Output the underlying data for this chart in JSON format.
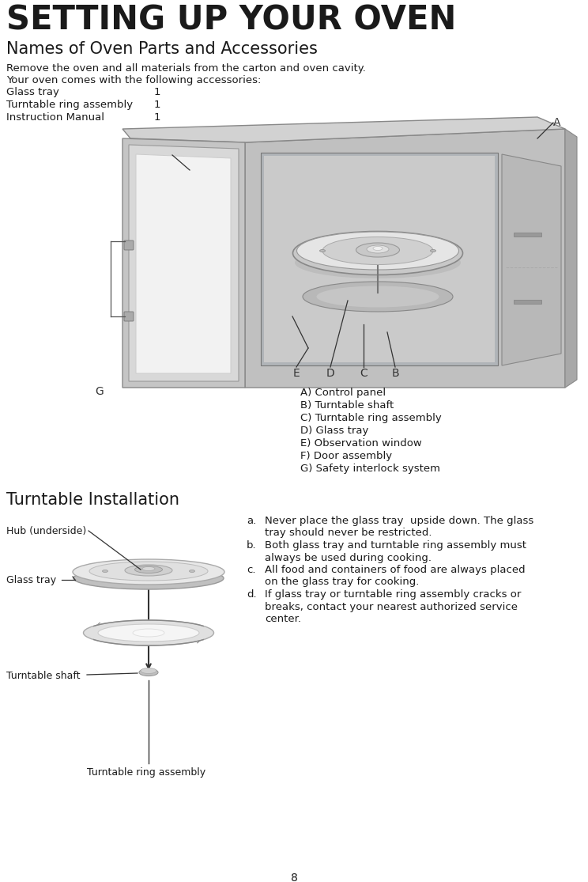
{
  "title": "SETTING UP YOUR OVEN",
  "subtitle": "Names of Oven Parts and Accessories",
  "intro_lines": [
    "Remove the oven and all materials from the carton and oven cavity.",
    "Your oven comes with the following accessories:"
  ],
  "accessories": [
    [
      "Glass tray",
      "1"
    ],
    [
      "Turntable ring assembly",
      "1"
    ],
    [
      "Instruction Manual",
      "1"
    ]
  ],
  "parts_labels": [
    "A) Control panel",
    "B) Turntable shaft",
    "C) Turntable ring assembly",
    "D) Glass tray",
    "E) Observation window",
    "F) Door assembly",
    "G) Safety interlock system"
  ],
  "turntable_title": "Turntable Installation",
  "page_number": "8",
  "bg_color": "#ffffff",
  "text_color": "#1a1a1a",
  "label_color": "#333333"
}
